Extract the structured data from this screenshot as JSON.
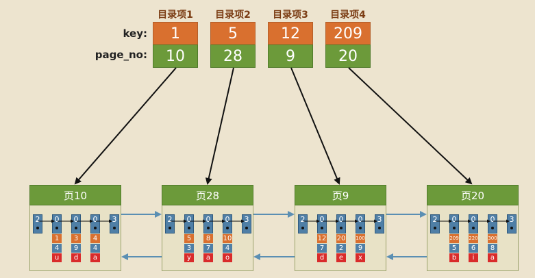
{
  "directory": {
    "row_labels": {
      "key": "key:",
      "page_no": "page_no:"
    },
    "items": [
      {
        "title": "目录项1",
        "key": "1",
        "page_no": "10"
      },
      {
        "title": "目录项2",
        "key": "5",
        "page_no": "28"
      },
      {
        "title": "目录项3",
        "key": "12",
        "page_no": "9"
      },
      {
        "title": "目录项4",
        "key": "209",
        "page_no": "20"
      }
    ]
  },
  "pages": [
    {
      "title": "页10",
      "infimum": "2",
      "supremum": "3",
      "records": [
        {
          "header": "0",
          "key": "1",
          "val": "4",
          "txt": "u"
        },
        {
          "header": "0",
          "key": "3",
          "val": "9",
          "txt": "d"
        },
        {
          "header": "0",
          "key": "4",
          "val": "4",
          "txt": "a"
        }
      ]
    },
    {
      "title": "页28",
      "infimum": "2",
      "supremum": "3",
      "records": [
        {
          "header": "0",
          "key": "5",
          "val": "3",
          "txt": "y"
        },
        {
          "header": "0",
          "key": "8",
          "val": "7",
          "txt": "a"
        },
        {
          "header": "0",
          "key": "10",
          "val": "4",
          "txt": "o"
        }
      ]
    },
    {
      "title": "页9",
      "infimum": "2",
      "supremum": "3",
      "records": [
        {
          "header": "0",
          "key": "12",
          "val": "7",
          "txt": "d"
        },
        {
          "header": "0",
          "key": "20",
          "val": "2",
          "txt": "e"
        },
        {
          "header": "0",
          "key": "100",
          "val": "9",
          "txt": "x"
        }
      ]
    },
    {
      "title": "页20",
      "infimum": "2",
      "supremum": "3",
      "records": [
        {
          "header": "0",
          "key": "209",
          "val": "5",
          "txt": "b"
        },
        {
          "header": "0",
          "key": "220",
          "val": "6",
          "txt": "i"
        },
        {
          "header": "0",
          "key": "300",
          "val": "8",
          "txt": "a"
        }
      ]
    }
  ],
  "colors": {
    "background": "#ede4cf",
    "key_orange": "#d9702f",
    "page_green": "#6c9a3a",
    "record_blue": "#4f7fa6",
    "text_red": "#d92b2b",
    "link_arrow": "#5b8fb3"
  }
}
